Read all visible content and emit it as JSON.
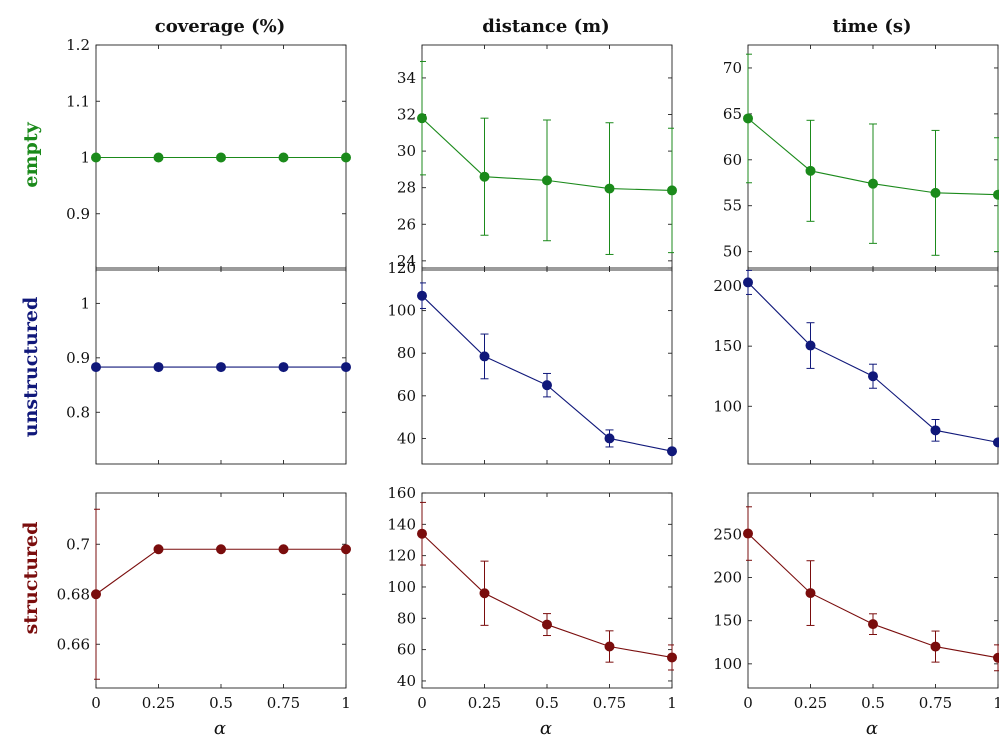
{
  "columns": [
    "coverage (%)",
    "distance (m)",
    "time (s)"
  ],
  "rows": [
    {
      "label": "empty",
      "color": "#1b8a1b"
    },
    {
      "label": "unstructured",
      "color": "#10187a"
    },
    {
      "label": "structured",
      "color": "#7a0d0d"
    }
  ],
  "x_label": "α",
  "chart_data": [
    {
      "type": "line",
      "row": "empty",
      "column": "coverage (%)",
      "x": [
        0,
        0.25,
        0.5,
        0.75,
        1
      ],
      "xticks": [
        "0",
        "0.25",
        "0.5",
        "0.75",
        "1"
      ],
      "y": [
        1,
        1,
        1,
        1,
        1
      ],
      "err": [
        0,
        0,
        0,
        0,
        0
      ],
      "ylim": [
        0.8,
        1.2
      ],
      "yticks": [
        0.9,
        1,
        1.1,
        1.2
      ],
      "ytick_labels": [
        "0.9",
        "1",
        "1.1",
        "1.2"
      ]
    },
    {
      "type": "line",
      "row": "empty",
      "column": "distance (m)",
      "x": [
        0,
        0.25,
        0.5,
        0.75,
        1
      ],
      "xticks": [
        "0",
        "0.25",
        "0.5",
        "0.75",
        "1"
      ],
      "y": [
        31.8,
        28.6,
        28.4,
        27.95,
        27.85
      ],
      "err": [
        3.1,
        3.2,
        3.3,
        3.6,
        3.4
      ],
      "ylim": [
        23.5,
        35.8
      ],
      "yticks": [
        24,
        26,
        28,
        30,
        32,
        34
      ],
      "ytick_labels": [
        "24",
        "26",
        "28",
        "30",
        "32",
        "34"
      ]
    },
    {
      "type": "line",
      "row": "empty",
      "column": "time (s)",
      "x": [
        0,
        0.25,
        0.5,
        0.75,
        1
      ],
      "xticks": [
        "0",
        "0.25",
        "0.5",
        "0.75",
        "1"
      ],
      "y": [
        64.5,
        58.8,
        57.4,
        56.4,
        56.2
      ],
      "err": [
        7,
        5.5,
        6.5,
        6.8,
        6.2
      ],
      "ylim": [
        48,
        72.5
      ],
      "yticks": [
        50,
        55,
        60,
        65,
        70
      ],
      "ytick_labels": [
        "50",
        "55",
        "60",
        "65",
        "70"
      ]
    },
    {
      "type": "line",
      "row": "unstructured",
      "column": "coverage (%)",
      "x": [
        0,
        0.25,
        0.5,
        0.75,
        1
      ],
      "xticks": [
        "0",
        "0.25",
        "0.5",
        "0.75",
        "1"
      ],
      "y": [
        0.883,
        0.883,
        0.883,
        0.883,
        0.883
      ],
      "err": [
        0,
        0,
        0,
        0,
        0
      ],
      "ylim": [
        0.705,
        1.065
      ],
      "yticks": [
        0.8,
        0.9,
        1
      ],
      "ytick_labels": [
        "0.8",
        "0.9",
        "1"
      ]
    },
    {
      "type": "line",
      "row": "unstructured",
      "column": "distance (m)",
      "x": [
        0,
        0.25,
        0.5,
        0.75,
        1
      ],
      "xticks": [
        "0",
        "0.25",
        "0.5",
        "0.75",
        "1"
      ],
      "y": [
        107,
        78.5,
        65,
        40,
        34
      ],
      "err": [
        6,
        10.5,
        5.5,
        4,
        0
      ],
      "ylim": [
        28,
        120
      ],
      "yticks": [
        40,
        60,
        80,
        100,
        120
      ],
      "ytick_labels": [
        "40",
        "60",
        "80",
        "100",
        "120"
      ]
    },
    {
      "type": "line",
      "row": "unstructured",
      "column": "time (s)",
      "x": [
        0,
        0.25,
        0.5,
        0.75,
        1
      ],
      "xticks": [
        "0",
        "0.25",
        "0.5",
        "0.75",
        "1"
      ],
      "y": [
        203,
        150.5,
        125,
        80,
        70
      ],
      "err": [
        10,
        19,
        10,
        9,
        0
      ],
      "ylim": [
        52,
        215
      ],
      "yticks": [
        100,
        150,
        200
      ],
      "ytick_labels": [
        "100",
        "150",
        "200"
      ]
    },
    {
      "type": "line",
      "row": "structured",
      "column": "coverage (%)",
      "x": [
        0,
        0.25,
        0.5,
        0.75,
        1
      ],
      "xticks": [
        "0",
        "0.25",
        "0.5",
        "0.75",
        "1"
      ],
      "y": [
        0.68,
        0.698,
        0.698,
        0.698,
        0.698
      ],
      "err": [
        0.034,
        0,
        0,
        0,
        0
      ],
      "ylim": [
        0.6425,
        0.7205
      ],
      "yticks": [
        0.66,
        0.68,
        0.7
      ],
      "ytick_labels": [
        "0.66",
        "0.68",
        "0.7"
      ]
    },
    {
      "type": "line",
      "row": "structured",
      "column": "distance (m)",
      "x": [
        0,
        0.25,
        0.5,
        0.75,
        1
      ],
      "xticks": [
        "0",
        "0.25",
        "0.5",
        "0.75",
        "1"
      ],
      "y": [
        134,
        96,
        76,
        62,
        55
      ],
      "err": [
        20,
        20.5,
        7,
        10,
        8
      ],
      "ylim": [
        35.5,
        160
      ],
      "yticks": [
        40,
        60,
        80,
        100,
        120,
        140,
        160
      ],
      "ytick_labels": [
        "40",
        "60",
        "80",
        "100",
        "120",
        "140",
        "160"
      ]
    },
    {
      "type": "line",
      "row": "structured",
      "column": "time (s)",
      "x": [
        0,
        0.25,
        0.5,
        0.75,
        1
      ],
      "xticks": [
        "0",
        "0.25",
        "0.5",
        "0.75",
        "1"
      ],
      "y": [
        251,
        182,
        146,
        120,
        107
      ],
      "err": [
        31,
        37.5,
        12,
        18,
        15
      ],
      "ylim": [
        72,
        298
      ],
      "yticks": [
        100,
        150,
        200,
        250
      ],
      "ytick_labels": [
        "100",
        "150",
        "200",
        "250"
      ]
    }
  ]
}
